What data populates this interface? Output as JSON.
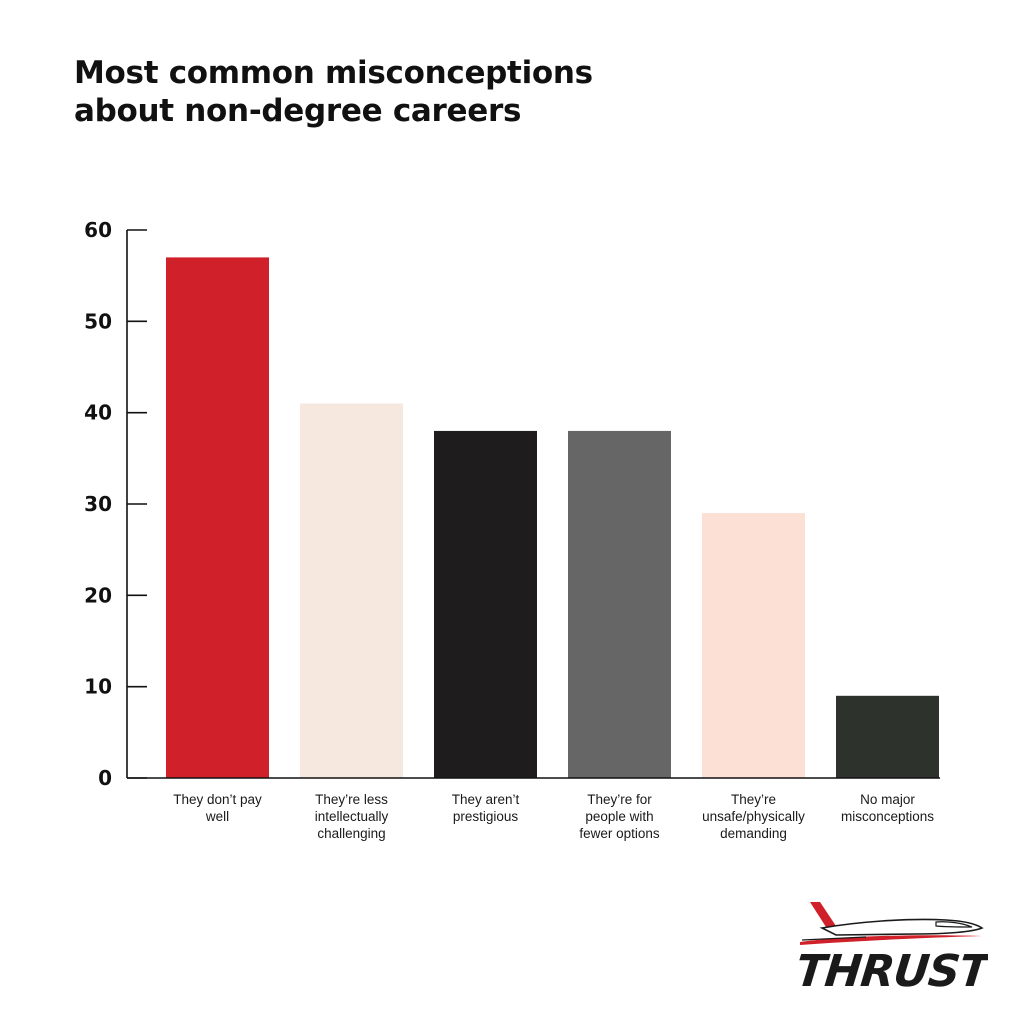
{
  "title_lines": [
    "Most common misconceptions",
    "about non-degree careers"
  ],
  "logo": {
    "text": "THRUST",
    "colors": {
      "accent": "#d0202a",
      "ink": "#1a1a1a"
    }
  },
  "chart_data": {
    "type": "bar",
    "title": "Most common misconceptions about non-degree careers",
    "xlabel": "",
    "ylabel": "",
    "ylim": [
      0,
      60
    ],
    "yticks": [
      0,
      10,
      20,
      30,
      40,
      50,
      60
    ],
    "grid": false,
    "legend": "none",
    "categories": [
      "They don’t pay\nwell",
      "They’re less\nintellectually\nchallenging",
      "They aren’t\nprestigious",
      "They’re for\npeople with\nfewer options",
      "They’re\nunsafe/physically\ndemanding",
      "No major\nmisconceptions"
    ],
    "values": [
      57,
      41,
      38,
      38,
      29,
      9
    ],
    "colors": [
      "#d0202a",
      "#f6e8de",
      "#1e1c1d",
      "#666666",
      "#fcdfd5",
      "#2e322d"
    ]
  }
}
